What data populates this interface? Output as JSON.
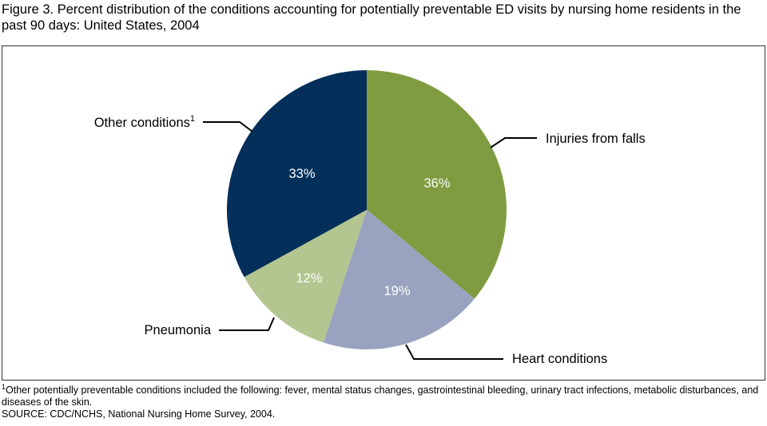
{
  "title": "Figure 3.  Percent distribution of the conditions accounting for potentially preventable ED visits by nursing home residents in the past 90 days: United States, 2004",
  "chart_data": {
    "type": "pie",
    "start": "12 o'clock, clockwise",
    "slices": [
      {
        "label": "Injuries from falls",
        "value": 36,
        "value_label": "36%",
        "color": "#7f9c41",
        "sup": ""
      },
      {
        "label": "Heart conditions",
        "value": 19,
        "value_label": "19%",
        "color": "#99a3bf",
        "sup": ""
      },
      {
        "label": "Pneumonia",
        "value": 12,
        "value_label": "12%",
        "color": "#b4c690",
        "sup": ""
      },
      {
        "label": "Other conditions",
        "value": 33,
        "value_label": "33%",
        "color": "#032f5a",
        "sup": "1"
      }
    ]
  },
  "footnote": {
    "marker": "1",
    "text": "Other potentially preventable conditions included the following: fever, mental status changes, gastrointestinal bleeding, urinary tract infections, metabolic disturbances, and diseases of the skin.",
    "source": "SOURCE: CDC/NCHS, National Nursing Home Survey, 2004."
  }
}
